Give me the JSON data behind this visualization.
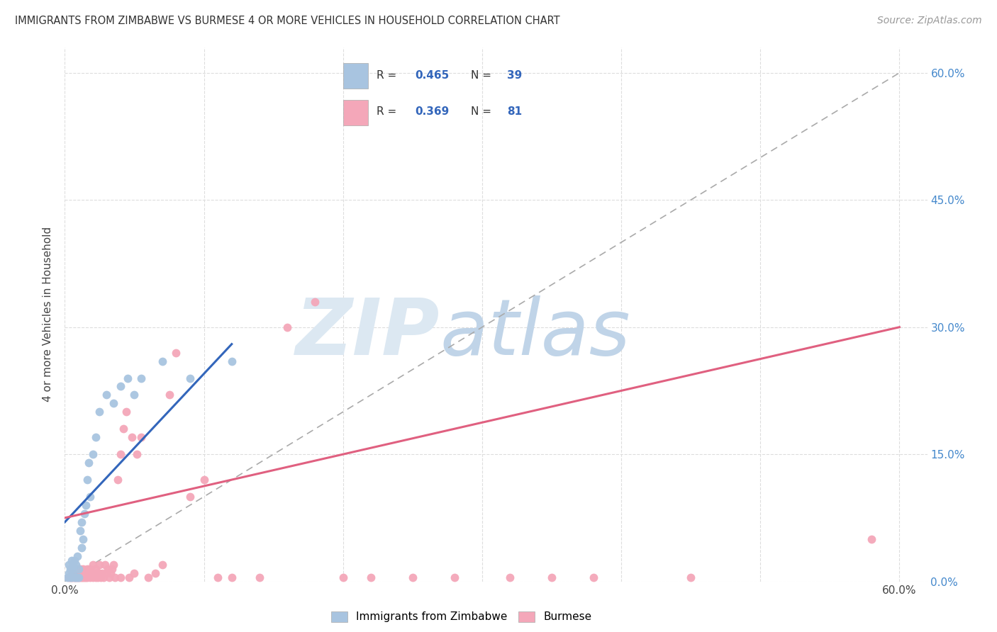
{
  "title": "IMMIGRANTS FROM ZIMBABWE VS BURMESE 4 OR MORE VEHICLES IN HOUSEHOLD CORRELATION CHART",
  "source": "Source: ZipAtlas.com",
  "ylabel": "4 or more Vehicles in Household",
  "xlim": [
    0.0,
    0.62
  ],
  "ylim": [
    0.0,
    0.63
  ],
  "blue_R": "0.465",
  "blue_N": "39",
  "pink_R": "0.369",
  "pink_N": "81",
  "blue_color": "#a8c4e0",
  "pink_color": "#f4a7b9",
  "blue_line_color": "#3366bb",
  "pink_line_color": "#e06080",
  "legend_blue_label": "Immigrants from Zimbabwe",
  "legend_pink_label": "Burmese",
  "blue_scatter_x": [
    0.002,
    0.003,
    0.003,
    0.004,
    0.004,
    0.005,
    0.005,
    0.005,
    0.006,
    0.006,
    0.007,
    0.007,
    0.008,
    0.008,
    0.009,
    0.009,
    0.01,
    0.01,
    0.011,
    0.012,
    0.012,
    0.013,
    0.014,
    0.015,
    0.016,
    0.017,
    0.018,
    0.02,
    0.022,
    0.025,
    0.03,
    0.035,
    0.04,
    0.045,
    0.05,
    0.055,
    0.07,
    0.09,
    0.12
  ],
  "blue_scatter_y": [
    0.005,
    0.01,
    0.02,
    0.005,
    0.015,
    0.005,
    0.015,
    0.025,
    0.01,
    0.02,
    0.005,
    0.025,
    0.005,
    0.02,
    0.005,
    0.03,
    0.005,
    0.015,
    0.06,
    0.04,
    0.07,
    0.05,
    0.08,
    0.09,
    0.12,
    0.14,
    0.1,
    0.15,
    0.17,
    0.2,
    0.22,
    0.21,
    0.23,
    0.24,
    0.22,
    0.24,
    0.26,
    0.24,
    0.26
  ],
  "pink_scatter_x": [
    0.003,
    0.004,
    0.005,
    0.005,
    0.006,
    0.006,
    0.007,
    0.007,
    0.008,
    0.008,
    0.009,
    0.009,
    0.01,
    0.01,
    0.011,
    0.011,
    0.012,
    0.012,
    0.013,
    0.013,
    0.014,
    0.014,
    0.015,
    0.015,
    0.016,
    0.016,
    0.017,
    0.018,
    0.018,
    0.019,
    0.02,
    0.02,
    0.021,
    0.022,
    0.022,
    0.023,
    0.024,
    0.025,
    0.025,
    0.026,
    0.027,
    0.028,
    0.029,
    0.03,
    0.031,
    0.032,
    0.033,
    0.034,
    0.035,
    0.036,
    0.038,
    0.04,
    0.04,
    0.042,
    0.044,
    0.046,
    0.048,
    0.05,
    0.052,
    0.055,
    0.06,
    0.065,
    0.07,
    0.075,
    0.08,
    0.09,
    0.1,
    0.11,
    0.12,
    0.14,
    0.16,
    0.18,
    0.2,
    0.22,
    0.25,
    0.28,
    0.32,
    0.35,
    0.38,
    0.45,
    0.58
  ],
  "pink_scatter_y": [
    0.005,
    0.005,
    0.005,
    0.01,
    0.005,
    0.01,
    0.005,
    0.01,
    0.005,
    0.01,
    0.005,
    0.01,
    0.005,
    0.01,
    0.005,
    0.015,
    0.005,
    0.01,
    0.005,
    0.015,
    0.005,
    0.01,
    0.005,
    0.01,
    0.005,
    0.015,
    0.01,
    0.005,
    0.015,
    0.01,
    0.005,
    0.02,
    0.01,
    0.005,
    0.015,
    0.01,
    0.005,
    0.01,
    0.02,
    0.005,
    0.01,
    0.005,
    0.02,
    0.01,
    0.015,
    0.005,
    0.01,
    0.015,
    0.02,
    0.005,
    0.12,
    0.15,
    0.005,
    0.18,
    0.2,
    0.005,
    0.17,
    0.01,
    0.15,
    0.17,
    0.005,
    0.01,
    0.02,
    0.22,
    0.27,
    0.1,
    0.12,
    0.005,
    0.005,
    0.005,
    0.3,
    0.33,
    0.005,
    0.005,
    0.005,
    0.005,
    0.005,
    0.005,
    0.005,
    0.005,
    0.05
  ],
  "blue_line_x0": 0.0,
  "blue_line_x1": 0.12,
  "blue_line_y0": 0.07,
  "blue_line_y1": 0.28,
  "pink_line_x0": 0.0,
  "pink_line_x1": 0.6,
  "pink_line_y0": 0.075,
  "pink_line_y1": 0.3
}
